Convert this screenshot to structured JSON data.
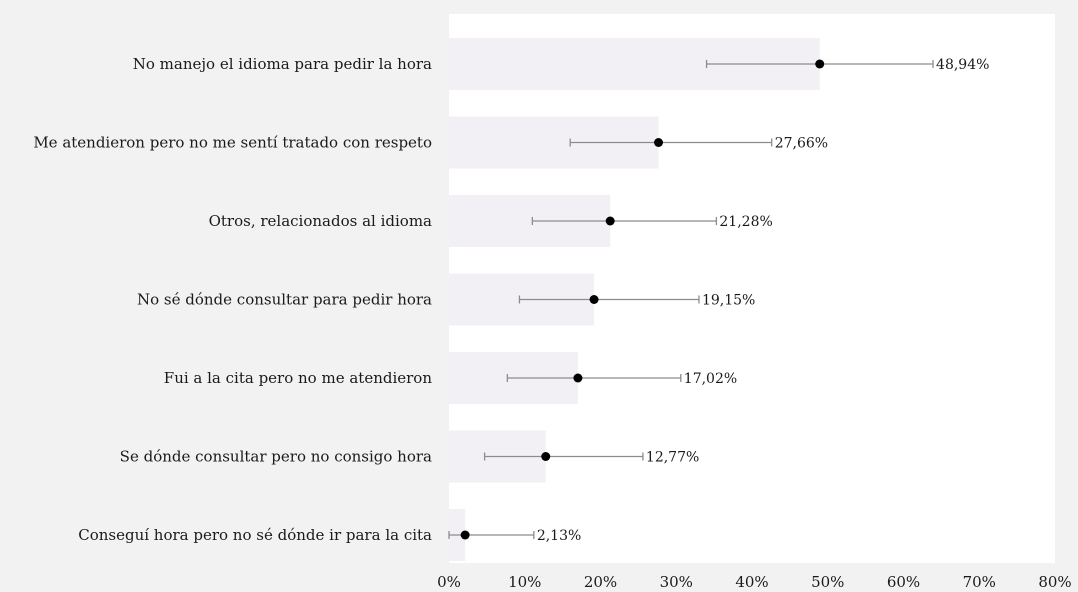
{
  "chart_data": {
    "type": "bar",
    "orientation": "horizontal",
    "categories": [
      "No manejo el idioma para pedir la hora",
      "Me atendieron pero no me sentí tratado con respeto",
      "Otros, relacionados al idioma",
      "No sé dónde consultar para pedir hora",
      "Fui a la cita pero no me atendieron",
      "Se dónde consultar pero no consigo hora",
      "Conseguí hora pero no sé dónde ir para la cita"
    ],
    "values": [
      48.94,
      27.66,
      21.28,
      19.15,
      17.02,
      12.77,
      2.13
    ],
    "value_labels": [
      "48,94%",
      "27,66%",
      "21,28%",
      "19,15%",
      "17,02%",
      "12,77%",
      "2,13%"
    ],
    "error_low": [
      34,
      16,
      11,
      9.3,
      7.7,
      4.7,
      0
    ],
    "error_high": [
      63.9,
      42.6,
      35.3,
      33,
      30.6,
      25.6,
      11.2
    ],
    "xlim": [
      0,
      80
    ],
    "x_ticks": [
      0,
      10,
      20,
      30,
      40,
      50,
      60,
      70,
      80
    ],
    "x_tick_labels": [
      "0%",
      "10%",
      "20%",
      "30%",
      "40%",
      "50%",
      "60%",
      "70%",
      "80%"
    ],
    "colors": {
      "bar": "#f2f0f4",
      "plot_background": "#ffffff",
      "page_background": "#f2f2f2",
      "error_bar": "#8c8c8c",
      "marker": "#000000"
    }
  }
}
